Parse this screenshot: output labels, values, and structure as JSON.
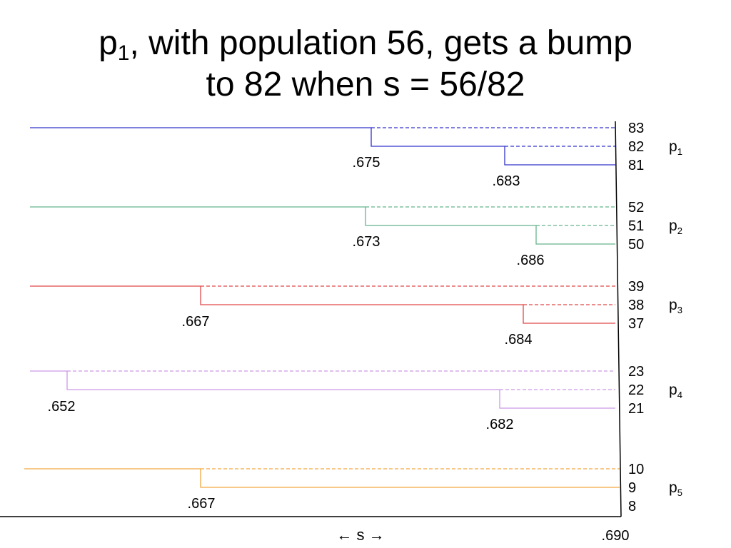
{
  "title": {
    "prefix": "p",
    "subscript": "1",
    "rest": ", with population 56, gets a bump",
    "line2": "to 82 when s = 56/82"
  },
  "axis": {
    "center_label": "← s →",
    "end_label": ".690"
  },
  "colors": {
    "p1": "#3333cc",
    "p2": "#66b38c",
    "p3": "#e04848",
    "p4": "#cc99e6",
    "p5": "#f2a640",
    "axis": "#000000"
  },
  "groups": [
    {
      "id": "p1",
      "label": "p",
      "sub": "1",
      "levels": [
        "83",
        "82",
        "81"
      ],
      "steps": [
        ".675",
        ".683"
      ]
    },
    {
      "id": "p2",
      "label": "p",
      "sub": "2",
      "levels": [
        "52",
        "51",
        "50"
      ],
      "steps": [
        ".673",
        ".686"
      ]
    },
    {
      "id": "p3",
      "label": "p",
      "sub": "3",
      "levels": [
        "39",
        "38",
        "37"
      ],
      "steps": [
        ".667",
        ".684"
      ]
    },
    {
      "id": "p4",
      "label": "p",
      "sub": "4",
      "levels": [
        "23",
        "22",
        "21"
      ],
      "steps": [
        ".652",
        ".682"
      ]
    },
    {
      "id": "p5",
      "label": "p",
      "sub": "5",
      "levels": [
        "10",
        "9",
        "8"
      ],
      "steps": [
        ".667"
      ]
    }
  ]
}
